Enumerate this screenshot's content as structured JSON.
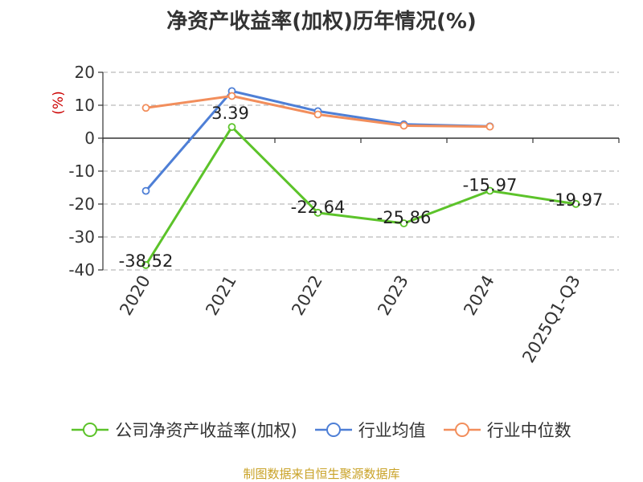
{
  "chart_data": {
    "type": "line",
    "title": "净资产收益率(加权)历年情况(%)",
    "ylabel": "(%)",
    "ylim": [
      -40,
      20
    ],
    "yticks": [
      20,
      10,
      0,
      -10,
      -20,
      -30,
      -40
    ],
    "categories": [
      "2020",
      "2021",
      "2022",
      "2023",
      "2024",
      "2025Q1-Q3"
    ],
    "grid": true,
    "legend_position": "bottom",
    "series": [
      {
        "name": "公司净资产收益率(加权)",
        "color": "#5cc32a",
        "values": [
          -38.52,
          3.39,
          -22.64,
          -25.86,
          -15.97,
          -19.97
        ],
        "labels": [
          "-38.52",
          "3.39",
          "-22.64",
          "-25.86",
          "-15.97",
          "-19.97"
        ]
      },
      {
        "name": "行业均值",
        "color": "#4e7fd6",
        "values": [
          -16,
          14.3,
          8.2,
          4.2,
          3.6,
          null
        ]
      },
      {
        "name": "行业中位数",
        "color": "#f28e5c",
        "values": [
          9.2,
          12.8,
          7.2,
          3.8,
          3.5,
          null
        ]
      }
    ]
  },
  "source_note": "制图数据来自恒生聚源数据库"
}
